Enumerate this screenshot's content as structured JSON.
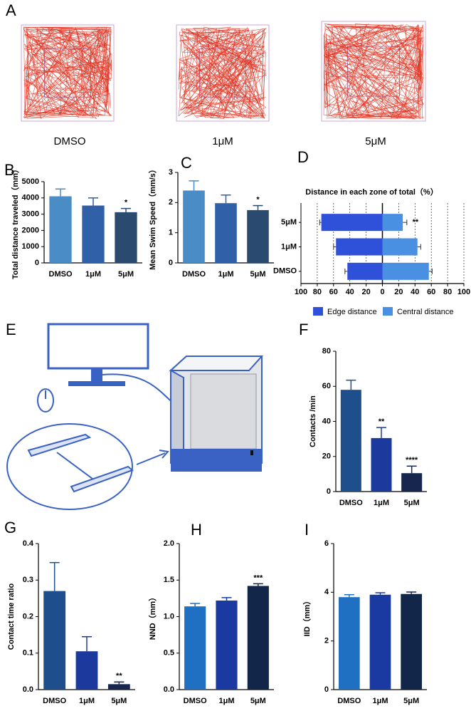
{
  "panel_letters": {
    "A": "A",
    "E": "E"
  },
  "trajectory_labels": [
    "DMSO",
    "1μM",
    "5μM"
  ],
  "chart_data": [
    {
      "type": "bar",
      "panel": "B",
      "ylabel": "Total distance traveled（mm）",
      "categories": [
        "DMSO",
        "1μM",
        "5μM"
      ],
      "values": [
        4100,
        3530,
        3120
      ],
      "errors": [
        450,
        470,
        230
      ],
      "colors": [
        "#4a8cc6",
        "#2f60a8",
        "#2b4a70"
      ],
      "ylim": [
        0,
        5000
      ],
      "yticks": [
        0,
        1000,
        2000,
        3000,
        4000,
        5000
      ],
      "annotations": [
        {
          "x": "5μM",
          "text": "*"
        }
      ]
    },
    {
      "type": "bar",
      "panel": "C",
      "ylabel": "Mean Swim Speed（mm/s）",
      "categories": [
        "DMSO",
        "1μM",
        "5μM"
      ],
      "values": [
        2.4,
        1.98,
        1.75
      ],
      "errors": [
        0.32,
        0.27,
        0.15
      ],
      "colors": [
        "#4a8cc6",
        "#2f60a8",
        "#2b4a70"
      ],
      "ylim": [
        0,
        3
      ],
      "yticks": [
        0,
        1,
        2,
        3
      ],
      "annotations": [
        {
          "x": "5μM",
          "text": "*"
        }
      ]
    },
    {
      "type": "hbar",
      "panel": "D",
      "title": "Distance in each zone of total（%）",
      "categories": [
        "5μM",
        "1μM",
        "DMSO"
      ],
      "series": [
        {
          "name": "Edge distance",
          "color": "#2f50d8",
          "values": [
            -75,
            -57,
            -43
          ],
          "errors": [
            2,
            3,
            3
          ]
        },
        {
          "name": "Central distance",
          "color": "#4a90e2",
          "values": [
            25,
            43,
            57
          ],
          "errors": [
            5,
            4,
            4
          ]
        }
      ],
      "xlim": [
        -100,
        100
      ],
      "xticks": [
        {
          "value": -100,
          "label": "100"
        },
        {
          "value": -80,
          "label": "80"
        },
        {
          "value": -60,
          "label": "60"
        },
        {
          "value": -40,
          "label": "40"
        },
        {
          "value": -20,
          "label": "20"
        },
        0,
        20,
        40,
        60,
        80,
        100
      ],
      "grid": "dotted",
      "legend": "bottom",
      "annotations": [
        {
          "y": "5μM",
          "text": "**"
        }
      ]
    },
    {
      "type": "bar",
      "panel": "F",
      "ylabel": "Contacts /min",
      "categories": [
        "DMSO",
        "1μM",
        "5μM"
      ],
      "values": [
        58,
        30.5,
        10.5
      ],
      "errors": [
        5.5,
        6,
        4
      ],
      "colors": [
        "#1f4e8c",
        "#1c3a9e",
        "#16264f"
      ],
      "ylim": [
        0,
        80
      ],
      "yticks": [
        0,
        20,
        40,
        60,
        80
      ],
      "annotations": [
        {
          "x": "1μM",
          "text": "**"
        },
        {
          "x": "5μM",
          "text": "****"
        }
      ]
    },
    {
      "type": "bar",
      "panel": "G",
      "ylabel": "Contact time ratio",
      "categories": [
        "DMSO",
        "1μM",
        "5μM"
      ],
      "values": [
        0.27,
        0.105,
        0.015
      ],
      "errors": [
        0.078,
        0.04,
        0.006
      ],
      "colors": [
        "#1f4e8c",
        "#1c3a9e",
        "#16264f"
      ],
      "ylim": [
        0,
        0.4
      ],
      "yticks": [
        {
          "value": 0,
          "label": "0.0"
        },
        0.1,
        0.2,
        0.3,
        0.4
      ],
      "annotations": [
        {
          "x": "5μM",
          "text": "**"
        }
      ]
    },
    {
      "type": "bar",
      "panel": "H",
      "ylabel": "NND（mm）",
      "categories": [
        "DMSO",
        "1μM",
        "5μM"
      ],
      "values": [
        1.14,
        1.22,
        1.42
      ],
      "errors": [
        0.04,
        0.04,
        0.03
      ],
      "colors": [
        "#1f70c2",
        "#1a3aa2",
        "#12264a"
      ],
      "ylim": [
        0,
        2
      ],
      "yticks": [
        {
          "value": 0,
          "label": "0.0"
        },
        0.5,
        {
          "value": 1,
          "label": "1.0"
        },
        1.5,
        {
          "value": 2,
          "label": "2.0"
        }
      ],
      "annotations": [
        {
          "x": "5μM",
          "text": "***"
        }
      ]
    },
    {
      "type": "bar",
      "panel": "I",
      "ylabel": "IID（mm）",
      "categories": [
        "DMSO",
        "1μM",
        "5μM"
      ],
      "values": [
        3.8,
        3.9,
        3.93
      ],
      "errors": [
        0.1,
        0.08,
        0.08
      ],
      "colors": [
        "#1f70c2",
        "#1a3aa2",
        "#12264a"
      ],
      "ylim": [
        0,
        6
      ],
      "yticks": [
        0,
        2,
        4,
        6
      ]
    }
  ]
}
